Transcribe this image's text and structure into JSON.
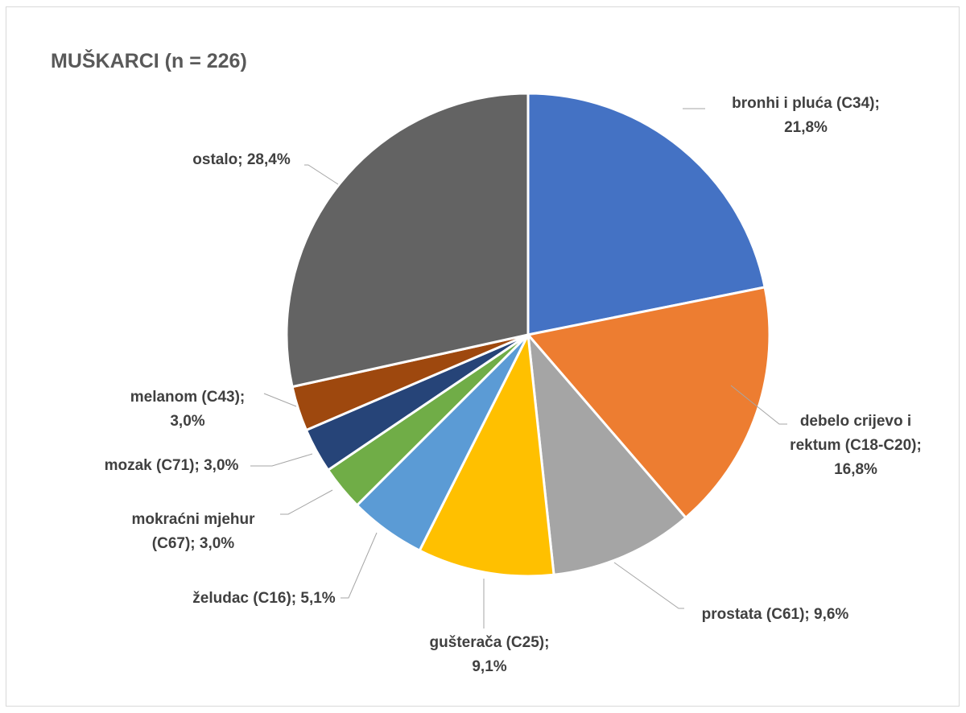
{
  "chart_data": {
    "type": "pie",
    "title": "MUŠKARCI (n = 226)",
    "start_angle_deg": 0,
    "direction": "clockwise",
    "slices": [
      {
        "name": "bronhi i pluća (C34)",
        "value": 21.8,
        "label_lines": [
          "bronhi i pluća (C34);",
          "21,8%"
        ],
        "color": "#4472C4"
      },
      {
        "name": "debelo crijevo i rektum (C18-C20)",
        "value": 16.8,
        "label_lines": [
          "debelo crijevo i",
          "rektum (C18-C20);",
          "16,8%"
        ],
        "color": "#ED7D31"
      },
      {
        "name": "prostata (C61)",
        "value": 9.6,
        "label_lines": [
          "prostata (C61); 9,6%"
        ],
        "color": "#A5A5A5"
      },
      {
        "name": "gušterača (C25)",
        "value": 9.1,
        "label_lines": [
          "gušterača (C25);",
          "9,1%"
        ],
        "color": "#FFC000"
      },
      {
        "name": "želudac (C16)",
        "value": 5.1,
        "label_lines": [
          "želudac (C16); 5,1%"
        ],
        "color": "#5B9BD5"
      },
      {
        "name": "mokraćni mjehur (C67)",
        "value": 3.0,
        "label_lines": [
          "mokraćni mjehur",
          "(C67); 3,0%"
        ],
        "color": "#70AD47"
      },
      {
        "name": "mozak (C71)",
        "value": 3.0,
        "label_lines": [
          "mozak (C71); 3,0%"
        ],
        "color": "#264478"
      },
      {
        "name": "melanom (C43)",
        "value": 3.0,
        "label_lines": [
          "melanom (C43);",
          "3,0%"
        ],
        "color": "#9E480E"
      },
      {
        "name": "ostalo",
        "value": 28.4,
        "label_lines": [
          "ostalo; 28,4%"
        ],
        "color": "#636363"
      }
    ]
  }
}
